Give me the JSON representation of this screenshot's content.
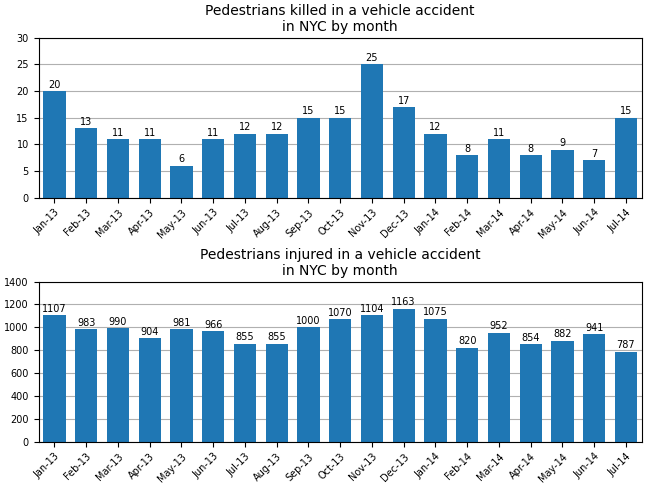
{
  "chart_data": [
    {
      "type": "bar",
      "title": "Pedestrians killed in a vehicle accident\nin NYC by month",
      "categories": [
        "Jan-13",
        "Feb-13",
        "Mar-13",
        "Apr-13",
        "May-13",
        "Jun-13",
        "Jul-13",
        "Aug-13",
        "Sep-13",
        "Oct-13",
        "Nov-13",
        "Dec-13",
        "Jan-14",
        "Feb-14",
        "Mar-14",
        "Apr-14",
        "May-14",
        "Jun-14",
        "Jul-14"
      ],
      "values": [
        20,
        13,
        11,
        11,
        6,
        11,
        12,
        12,
        15,
        15,
        25,
        17,
        12,
        8,
        11,
        8,
        9,
        7,
        15
      ],
      "ylim": [
        0,
        30
      ],
      "yticks": [
        0,
        5,
        10,
        15,
        20,
        25,
        30
      ],
      "grid": true,
      "data_labels": true
    },
    {
      "type": "bar",
      "title": "Pedestrians injured in a vehicle accident\nin NYC by month",
      "categories": [
        "Jan-13",
        "Feb-13",
        "Mar-13",
        "Apr-13",
        "May-13",
        "Jun-13",
        "Jul-13",
        "Aug-13",
        "Sep-13",
        "Oct-13",
        "Nov-13",
        "Dec-13",
        "Jan-14",
        "Feb-14",
        "Mar-14",
        "Apr-14",
        "May-14",
        "Jun-14",
        "Jul-14"
      ],
      "values": [
        1107,
        983,
        990,
        904,
        981,
        966,
        855,
        855,
        1000,
        1070,
        1104,
        1163,
        1075,
        820,
        952,
        854,
        882,
        941,
        787
      ],
      "ylim": [
        0,
        1400
      ],
      "yticks": [
        0,
        200,
        400,
        600,
        800,
        1000,
        1200,
        1400
      ],
      "grid": true,
      "data_labels": true
    }
  ]
}
